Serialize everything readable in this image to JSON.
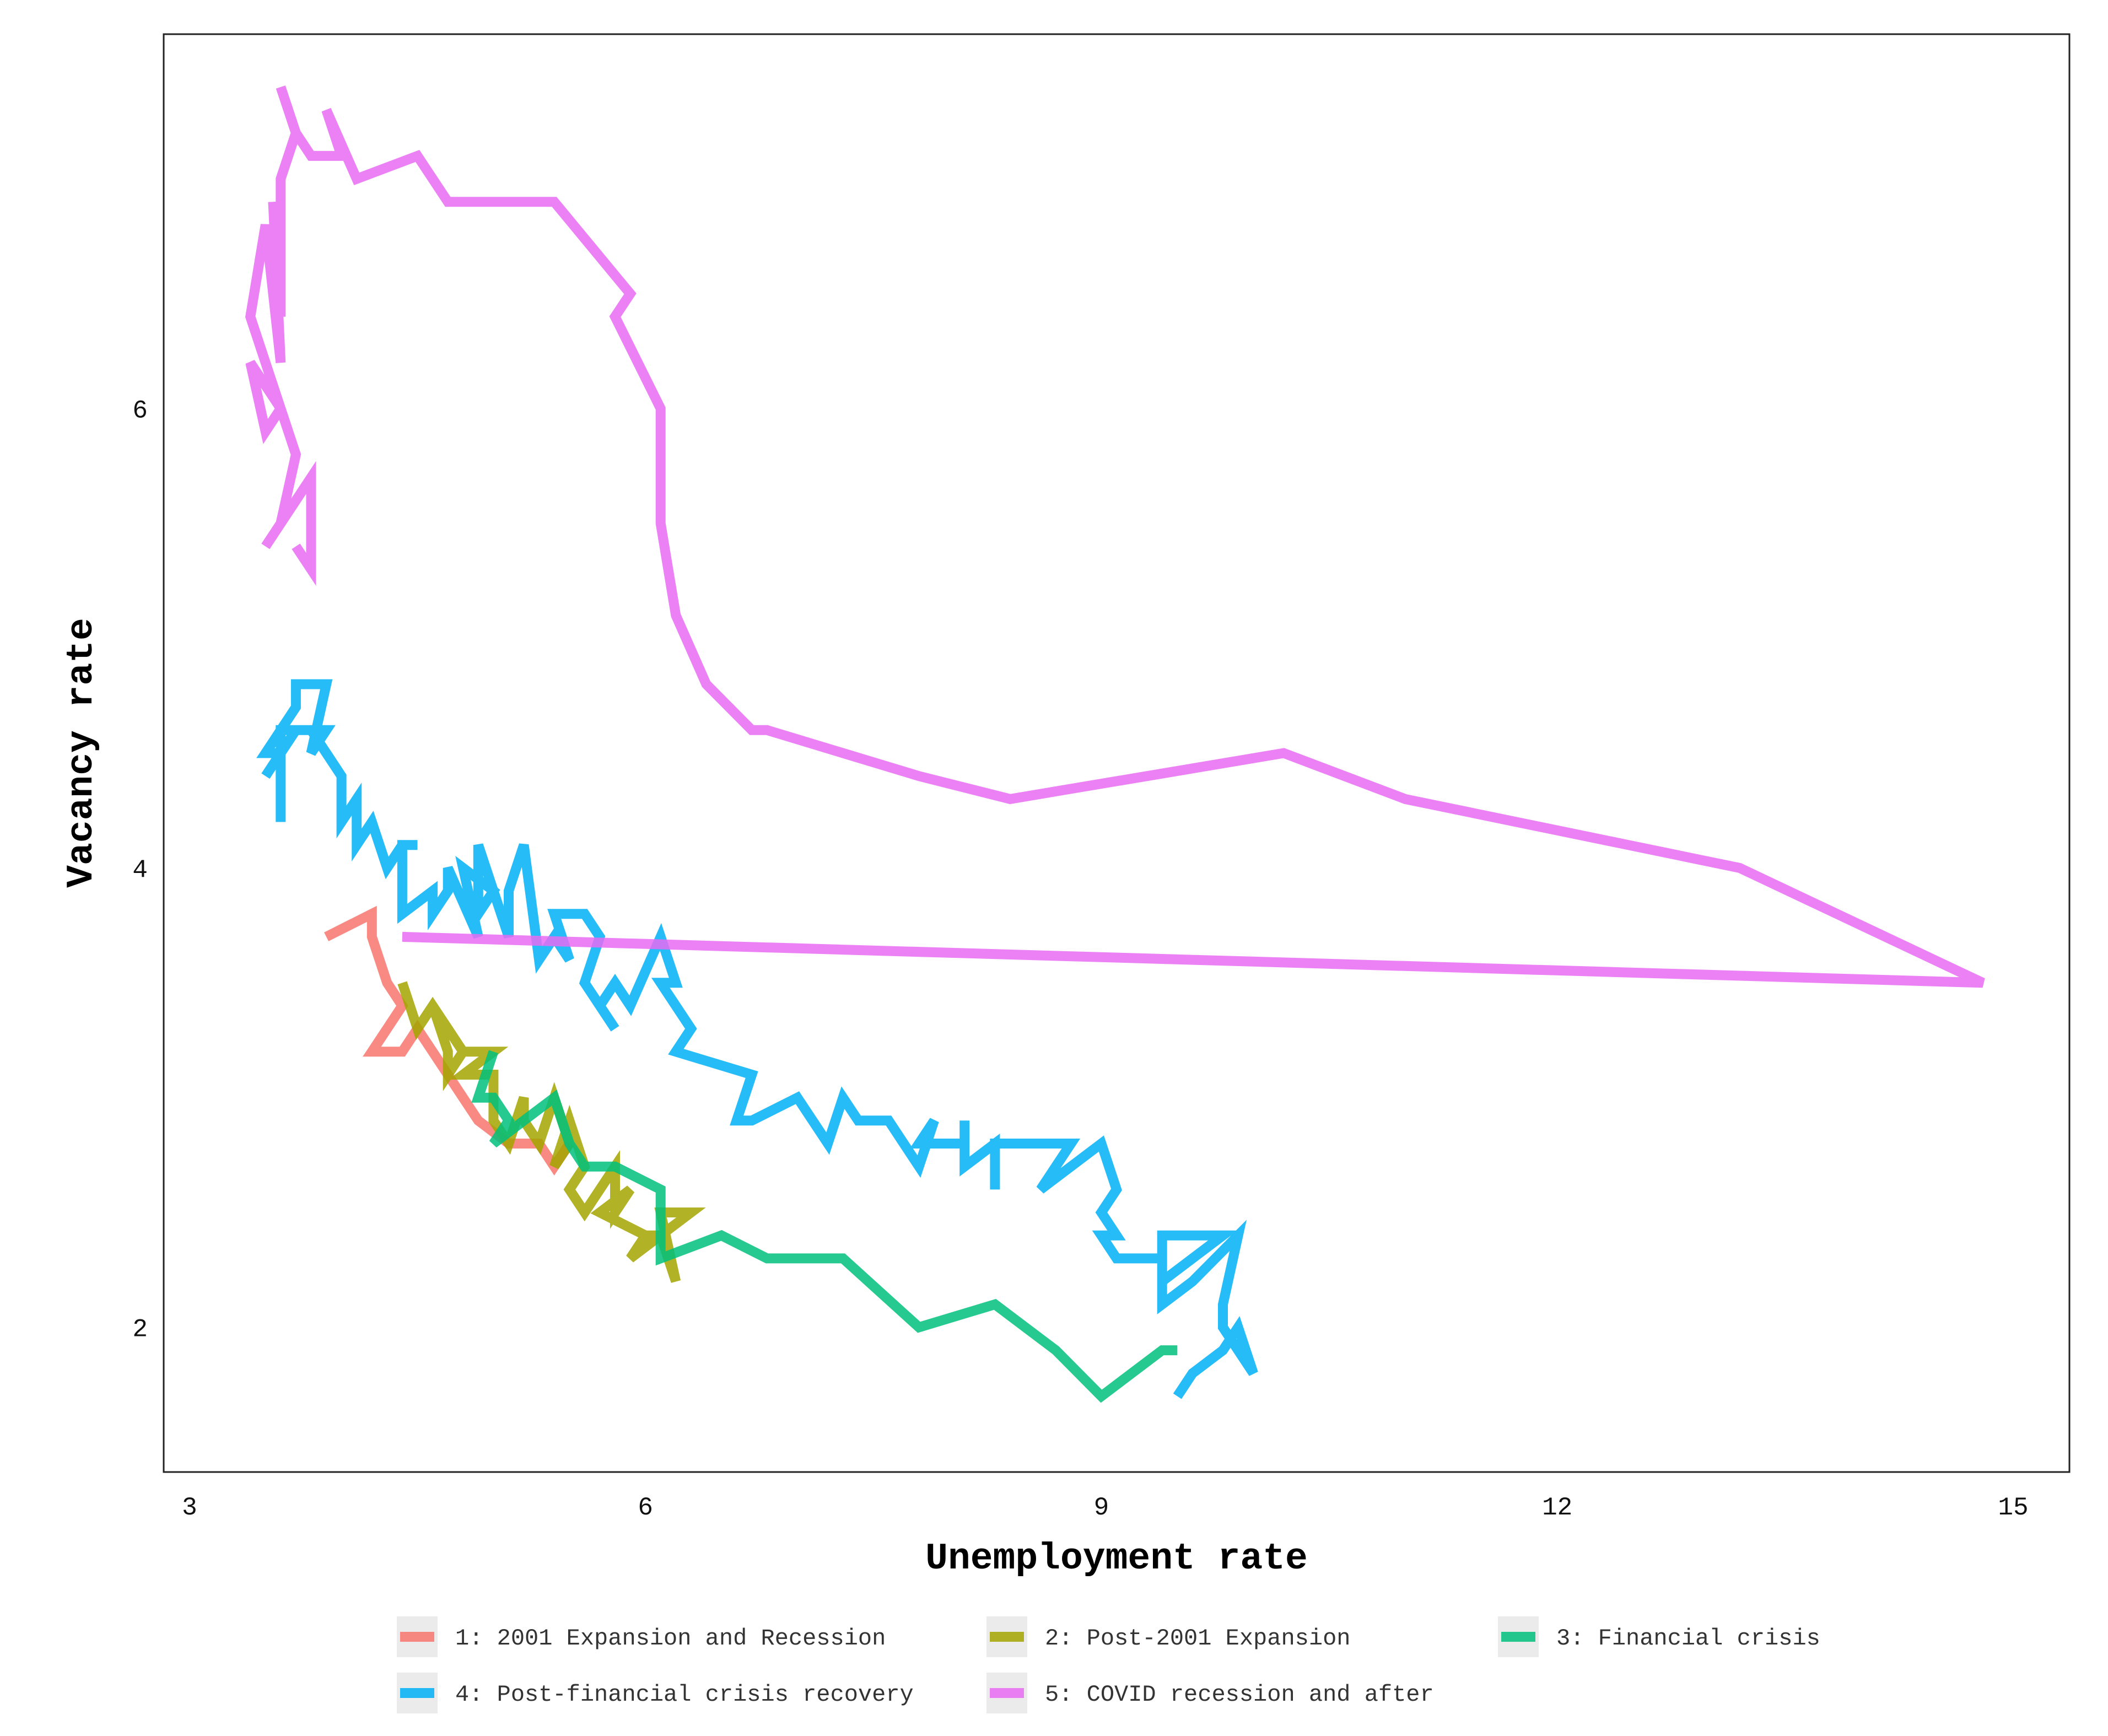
{
  "chart_data": {
    "type": "line",
    "xlabel": "Unemployment rate",
    "ylabel": "Vacancy rate",
    "xlim": [
      2.83,
      15.37
    ],
    "ylim": [
      1.37,
      7.63
    ],
    "xticks": [
      "3",
      "6",
      "9",
      "12",
      "15"
    ],
    "xtick_values": [
      3,
      6,
      9,
      12,
      15
    ],
    "yticks": [
      "2",
      "4",
      "6"
    ],
    "ytick_values": [
      2,
      4,
      6
    ],
    "grid": false,
    "legend_position": "bottom",
    "series": [
      {
        "name": "1: 2001 Expansion and Recession",
        "color": "#F8766D",
        "points": [
          [
            3.9,
            3.7
          ],
          [
            4.2,
            3.8
          ],
          [
            4.2,
            3.7
          ],
          [
            4.3,
            3.5
          ],
          [
            4.4,
            3.4
          ],
          [
            4.3,
            3.3
          ],
          [
            4.2,
            3.2
          ],
          [
            4.4,
            3.2
          ],
          [
            4.5,
            3.3
          ],
          [
            4.7,
            3.1
          ],
          [
            4.8,
            3.0
          ],
          [
            4.9,
            2.9
          ],
          [
            5.1,
            2.8
          ],
          [
            5.3,
            2.8
          ],
          [
            5.4,
            2.7
          ],
          [
            5.5,
            2.8
          ]
        ]
      },
      {
        "name": "2: Post-2001 Expansion",
        "color": "#A3A500",
        "points": [
          [
            4.4,
            3.5
          ],
          [
            4.5,
            3.3
          ],
          [
            4.6,
            3.4
          ],
          [
            4.7,
            3.3
          ],
          [
            4.8,
            3.2
          ],
          [
            4.6,
            3.4
          ],
          [
            4.7,
            3.2
          ],
          [
            4.7,
            3.1
          ],
          [
            4.8,
            3.2
          ],
          [
            5.0,
            3.2
          ],
          [
            4.8,
            3.1
          ],
          [
            5.0,
            3.1
          ],
          [
            5.0,
            2.9
          ],
          [
            5.1,
            2.8
          ],
          [
            5.2,
            3.0
          ],
          [
            5.2,
            2.9
          ],
          [
            5.3,
            2.8
          ],
          [
            5.4,
            3.0
          ],
          [
            5.5,
            2.8
          ],
          [
            5.4,
            2.7
          ],
          [
            5.5,
            2.9
          ],
          [
            5.6,
            2.7
          ],
          [
            5.5,
            2.6
          ],
          [
            5.6,
            2.5
          ],
          [
            5.8,
            2.7
          ],
          [
            5.8,
            2.5
          ],
          [
            5.9,
            2.6
          ],
          [
            5.7,
            2.5
          ],
          [
            6.0,
            2.4
          ],
          [
            5.9,
            2.3
          ],
          [
            6.1,
            2.4
          ],
          [
            6.2,
            2.2
          ],
          [
            6.1,
            2.5
          ],
          [
            6.3,
            2.5
          ],
          [
            6.1,
            2.4
          ],
          [
            6.0,
            2.4
          ]
        ]
      },
      {
        "name": "3: Financial crisis",
        "color": "#00BF7D",
        "points": [
          [
            5.0,
            3.2
          ],
          [
            4.9,
            3.0
          ],
          [
            5.0,
            3.0
          ],
          [
            5.1,
            2.9
          ],
          [
            5.0,
            2.8
          ],
          [
            5.2,
            2.9
          ],
          [
            5.4,
            3.0
          ],
          [
            5.5,
            2.8
          ],
          [
            5.6,
            2.7
          ],
          [
            5.8,
            2.7
          ],
          [
            6.1,
            2.6
          ],
          [
            6.1,
            2.3
          ],
          [
            6.5,
            2.4
          ],
          [
            6.8,
            2.3
          ],
          [
            7.3,
            2.3
          ],
          [
            7.8,
            2.0
          ],
          [
            8.3,
            2.1
          ],
          [
            8.7,
            1.9
          ],
          [
            9.0,
            1.7
          ],
          [
            9.4,
            1.9
          ],
          [
            9.5,
            1.9
          ]
        ]
      },
      {
        "name": "4: Post-financial crisis recovery",
        "color": "#00B0F6",
        "points": [
          [
            9.5,
            1.7
          ],
          [
            9.6,
            1.8
          ],
          [
            9.8,
            1.9
          ],
          [
            9.9,
            2.0
          ],
          [
            10.0,
            1.8
          ],
          [
            9.9,
            1.9
          ],
          [
            9.8,
            2.0
          ],
          [
            9.8,
            2.1
          ],
          [
            9.9,
            2.4
          ],
          [
            9.6,
            2.2
          ],
          [
            9.4,
            2.1
          ],
          [
            9.4,
            2.4
          ],
          [
            9.8,
            2.4
          ],
          [
            9.4,
            2.2
          ],
          [
            9.4,
            2.3
          ],
          [
            9.1,
            2.3
          ],
          [
            9.0,
            2.4
          ],
          [
            9.1,
            2.4
          ],
          [
            9.0,
            2.5
          ],
          [
            9.1,
            2.6
          ],
          [
            9.0,
            2.8
          ],
          [
            8.6,
            2.6
          ],
          [
            8.8,
            2.8
          ],
          [
            8.3,
            2.8
          ],
          [
            8.3,
            2.6
          ],
          [
            8.3,
            2.8
          ],
          [
            8.1,
            2.7
          ],
          [
            8.1,
            2.9
          ],
          [
            8.1,
            2.8
          ],
          [
            7.8,
            2.8
          ],
          [
            7.9,
            2.9
          ],
          [
            7.8,
            2.7
          ],
          [
            7.7,
            2.8
          ],
          [
            7.6,
            2.9
          ],
          [
            7.4,
            2.9
          ],
          [
            7.3,
            3.0
          ],
          [
            7.2,
            2.8
          ],
          [
            7.0,
            3.0
          ],
          [
            6.7,
            2.9
          ],
          [
            6.6,
            2.9
          ],
          [
            6.7,
            3.1
          ],
          [
            6.2,
            3.2
          ],
          [
            6.3,
            3.3
          ],
          [
            6.2,
            3.4
          ],
          [
            6.1,
            3.5
          ],
          [
            6.2,
            3.5
          ],
          [
            6.1,
            3.7
          ],
          [
            5.9,
            3.4
          ],
          [
            5.8,
            3.5
          ],
          [
            5.7,
            3.4
          ],
          [
            5.8,
            3.3
          ],
          [
            5.6,
            3.5
          ],
          [
            5.7,
            3.7
          ],
          [
            5.6,
            3.8
          ],
          [
            5.4,
            3.8
          ],
          [
            5.5,
            3.6
          ],
          [
            5.4,
            3.7
          ],
          [
            5.3,
            3.6
          ],
          [
            5.2,
            4.1
          ],
          [
            5.1,
            3.9
          ],
          [
            5.1,
            3.7
          ],
          [
            5.0,
            3.9
          ],
          [
            4.9,
            4.1
          ],
          [
            4.9,
            3.8
          ],
          [
            5.0,
            3.9
          ],
          [
            4.8,
            4.0
          ],
          [
            4.9,
            3.7
          ],
          [
            4.7,
            4.0
          ],
          [
            4.7,
            3.9
          ],
          [
            4.6,
            3.8
          ],
          [
            4.6,
            3.9
          ],
          [
            4.4,
            3.8
          ],
          [
            4.4,
            4.1
          ],
          [
            4.5,
            4.1
          ],
          [
            4.4,
            4.1
          ],
          [
            4.3,
            4.0
          ],
          [
            4.2,
            4.2
          ],
          [
            4.1,
            4.1
          ],
          [
            4.1,
            4.3
          ],
          [
            4.0,
            4.2
          ],
          [
            4.0,
            4.4
          ],
          [
            3.9,
            4.5
          ],
          [
            3.8,
            4.6
          ],
          [
            3.7,
            4.6
          ],
          [
            3.6,
            4.6
          ],
          [
            3.6,
            4.2
          ],
          [
            3.6,
            4.6
          ],
          [
            3.6,
            4.5
          ],
          [
            3.5,
            4.5
          ],
          [
            3.7,
            4.7
          ],
          [
            3.7,
            4.8
          ],
          [
            3.9,
            4.8
          ],
          [
            3.8,
            4.5
          ],
          [
            3.9,
            4.6
          ],
          [
            3.7,
            4.6
          ],
          [
            3.6,
            4.5
          ],
          [
            3.5,
            4.4
          ]
        ]
      },
      {
        "name": "5: COVID recession and after",
        "color": "#E76BF3",
        "points": [
          [
            4.4,
            3.7
          ],
          [
            14.8,
            3.5
          ],
          [
            13.2,
            4.0
          ],
          [
            11.0,
            4.3
          ],
          [
            10.2,
            4.5
          ],
          [
            8.4,
            4.3
          ],
          [
            7.8,
            4.4
          ],
          [
            6.8,
            4.6
          ],
          [
            6.7,
            4.6
          ],
          [
            6.4,
            4.8
          ],
          [
            6.2,
            5.1
          ],
          [
            6.1,
            5.5
          ],
          [
            6.1,
            6.0
          ],
          [
            5.8,
            6.4
          ],
          [
            5.9,
            6.5
          ],
          [
            5.4,
            6.9
          ],
          [
            4.7,
            6.9
          ],
          [
            4.5,
            7.1
          ],
          [
            4.1,
            7.0
          ],
          [
            3.9,
            7.3
          ],
          [
            4.0,
            7.1
          ],
          [
            3.8,
            7.1
          ],
          [
            3.7,
            7.2
          ],
          [
            3.6,
            7.4
          ],
          [
            3.7,
            7.2
          ],
          [
            3.6,
            7.0
          ],
          [
            3.6,
            6.4
          ],
          [
            3.55,
            6.9
          ],
          [
            3.6,
            6.2
          ],
          [
            3.5,
            6.8
          ],
          [
            3.4,
            6.4
          ],
          [
            3.6,
            6.0
          ],
          [
            3.4,
            6.2
          ],
          [
            3.5,
            5.9
          ],
          [
            3.6,
            6.0
          ],
          [
            3.7,
            5.8
          ],
          [
            3.6,
            5.5
          ],
          [
            3.5,
            5.4
          ],
          [
            3.8,
            5.7
          ],
          [
            3.8,
            5.3
          ],
          [
            3.7,
            5.4
          ]
        ]
      }
    ]
  }
}
